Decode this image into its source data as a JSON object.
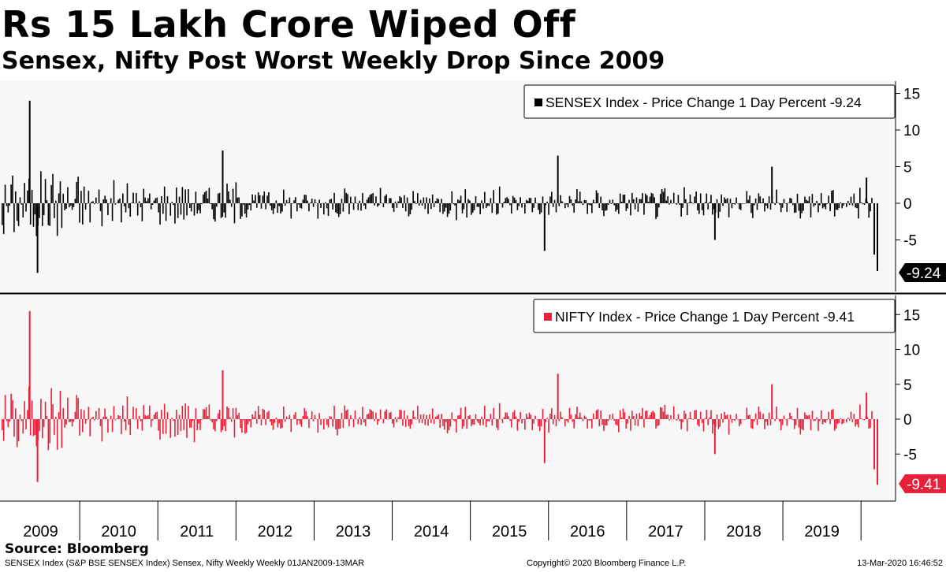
{
  "header": {
    "title": "Rs 15 Lakh Crore Wiped Off",
    "subtitle": "Sensex, Nifty Post Worst Weekly Drop Since 2009"
  },
  "footer": {
    "source": "Source: Bloomberg",
    "left": "SENSEX Index (S&P BSE SENSEX Index) Sensex, Nifty Weekly  Weekly 01JAN2009-13MAR",
    "middle": "Copyright© 2020 Bloomberg Finance L.P.",
    "right": "13-Mar-2020 16:46:52"
  },
  "colors": {
    "sensex": "#000000",
    "nifty": "#e8213a",
    "panel_bg": "#f7f7f7"
  },
  "chart_data": [
    {
      "type": "bar",
      "panel": "top",
      "legend": "SENSEX Index - Price Change 1 Day Percent -9.24",
      "last_value_label": "-9.24",
      "ylim": [
        -12,
        16
      ],
      "yticks": [
        15,
        10,
        5,
        0,
        -5
      ],
      "xticks": [
        "2009",
        "2010",
        "2011",
        "2012",
        "2013",
        "2014",
        "2015",
        "2016",
        "2017",
        "2018",
        "2019"
      ],
      "x_range": [
        2009.0,
        2020.2
      ],
      "highlights": [
        {
          "x": 2009.35,
          "value": 14.0
        },
        {
          "x": 2009.45,
          "value": -9.5
        },
        {
          "x": 2011.82,
          "value": 7.2
        },
        {
          "x": 2015.94,
          "value": -6.5
        },
        {
          "x": 2016.11,
          "value": 6.5
        },
        {
          "x": 2018.12,
          "value": -5.0
        },
        {
          "x": 2018.85,
          "value": 5.0
        },
        {
          "x": 2020.06,
          "value": 3.5
        },
        {
          "x": 2020.16,
          "value": -7.0
        },
        {
          "x": 2020.2,
          "value": -9.24
        }
      ]
    },
    {
      "type": "bar",
      "panel": "bottom",
      "legend": "NIFTY Index - Price Change 1 Day Percent -9.41",
      "last_value_label": "-9.41",
      "ylim": [
        -12,
        18
      ],
      "yticks": [
        15,
        10,
        5,
        0,
        -5
      ],
      "xticks": [
        "2009",
        "2010",
        "2011",
        "2012",
        "2013",
        "2014",
        "2015",
        "2016",
        "2017",
        "2018",
        "2019"
      ],
      "x_range": [
        2009.0,
        2020.2
      ],
      "highlights": [
        {
          "x": 2009.35,
          "value": 15.5
        },
        {
          "x": 2009.45,
          "value": -9.0
        },
        {
          "x": 2011.82,
          "value": 7.0
        },
        {
          "x": 2015.94,
          "value": -6.3
        },
        {
          "x": 2016.11,
          "value": 6.5
        },
        {
          "x": 2018.12,
          "value": -5.0
        },
        {
          "x": 2018.85,
          "value": 5.0
        },
        {
          "x": 2020.06,
          "value": 3.8
        },
        {
          "x": 2020.16,
          "value": -7.2
        },
        {
          "x": 2020.2,
          "value": -9.41
        }
      ]
    }
  ]
}
